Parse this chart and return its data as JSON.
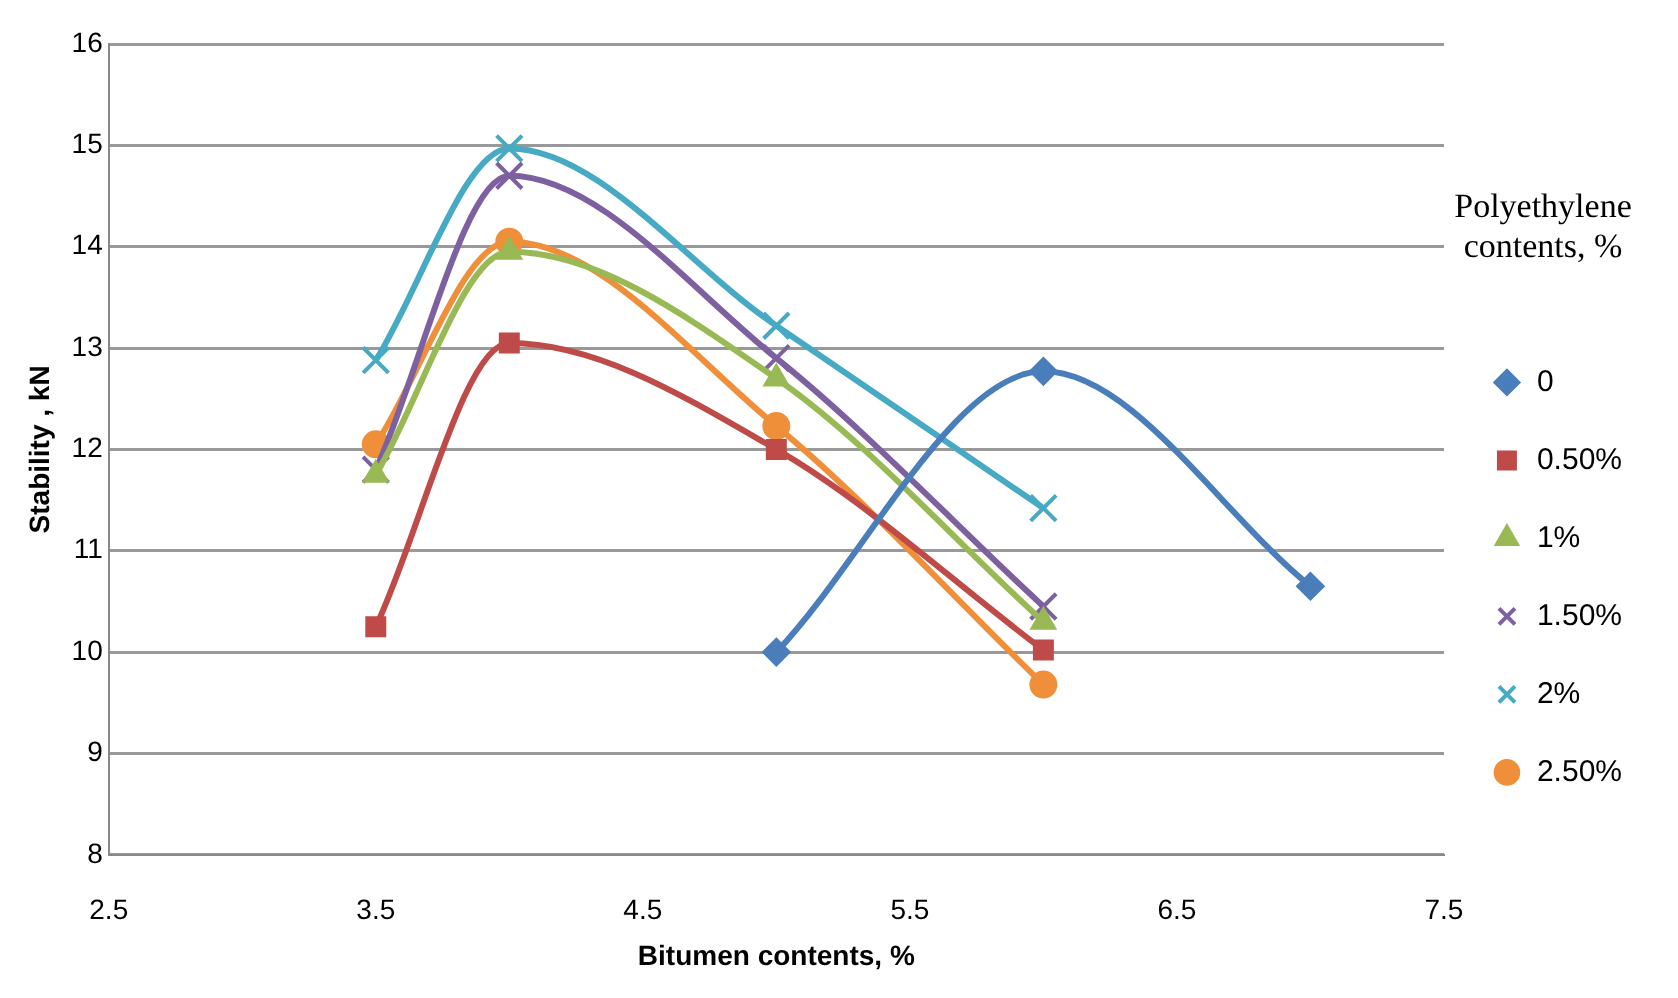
{
  "chart_data": {
    "type": "line",
    "xlabel": "Bitumen contents, %",
    "ylabel": "Stability , kN",
    "legend_title": "Polyethylene contents, %",
    "xlim": [
      2.5,
      7.5
    ],
    "xticks": [
      2.5,
      3.5,
      4.5,
      5.5,
      6.5,
      7.5
    ],
    "ylim": [
      8,
      16
    ],
    "yticks": [
      8,
      9,
      10,
      11,
      12,
      13,
      14,
      15,
      16
    ],
    "grid": "y",
    "legend": "right",
    "series": [
      {
        "name": "0",
        "color": "#4a7ebb",
        "marker": "diamond",
        "x": [
          5,
          6,
          7
        ],
        "values": [
          10.0,
          12.77,
          10.65
        ]
      },
      {
        "name": "0.50%",
        "color": "#be4b48",
        "marker": "square",
        "x": [
          3.5,
          4,
          5,
          6
        ],
        "values": [
          10.25,
          13.05,
          12.0,
          10.02
        ]
      },
      {
        "name": "1%",
        "color": "#98b954",
        "marker": "triangle",
        "x": [
          3.5,
          4,
          5,
          6
        ],
        "values": [
          11.75,
          13.95,
          12.7,
          10.3
        ]
      },
      {
        "name": "1.50%",
        "color": "#7d60a0",
        "marker": "cross",
        "x": [
          3.5,
          4,
          5,
          6
        ],
        "values": [
          11.8,
          14.7,
          12.9,
          10.45
        ]
      },
      {
        "name": "2%",
        "color": "#46aac5",
        "marker": "cross",
        "x": [
          3.5,
          4,
          5,
          6
        ],
        "values": [
          12.88,
          14.97,
          13.22,
          11.42
        ]
      },
      {
        "name": "2.50%",
        "color": "#f08f3a",
        "marker": "circle",
        "x": [
          3.5,
          4,
          5,
          6
        ],
        "values": [
          12.05,
          14.05,
          12.23,
          9.68
        ]
      }
    ]
  }
}
